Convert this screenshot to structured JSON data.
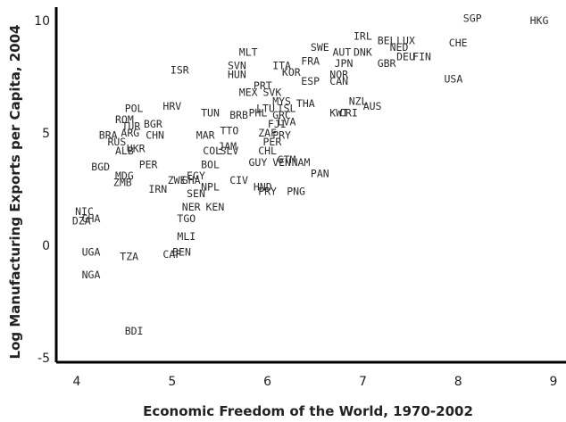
{
  "chart_data": {
    "type": "scatter",
    "xlabel": "Economic Freedom of the World, 1970-2002",
    "ylabel": "Log Manufacturing Exports per Capita, 2004",
    "xlim": [
      3.8,
      9.2
    ],
    "ylim": [
      -6.0,
      10.6
    ],
    "xticks": [
      4,
      5,
      6,
      7,
      8,
      9
    ],
    "yticks": [
      -5,
      0,
      5,
      10
    ],
    "grid": false,
    "points": [
      {
        "label": "SGP",
        "x": 8.15,
        "y": 10.1
      },
      {
        "label": "HKG",
        "x": 8.85,
        "y": 10.0
      },
      {
        "label": "IRL",
        "x": 7.0,
        "y": 9.3
      },
      {
        "label": "BEL",
        "x": 7.25,
        "y": 9.1
      },
      {
        "label": "LUX",
        "x": 7.45,
        "y": 9.1
      },
      {
        "label": "NED",
        "x": 7.38,
        "y": 8.8
      },
      {
        "label": "CHE",
        "x": 8.0,
        "y": 9.0
      },
      {
        "label": "DEU",
        "x": 7.45,
        "y": 8.4
      },
      {
        "label": "FIN",
        "x": 7.62,
        "y": 8.4
      },
      {
        "label": "SWE",
        "x": 6.55,
        "y": 8.8
      },
      {
        "label": "AUT",
        "x": 6.78,
        "y": 8.6
      },
      {
        "label": "DNK",
        "x": 7.0,
        "y": 8.6
      },
      {
        "label": "FRA",
        "x": 6.45,
        "y": 8.2
      },
      {
        "label": "JPN",
        "x": 6.8,
        "y": 8.1
      },
      {
        "label": "GBR",
        "x": 7.25,
        "y": 8.1
      },
      {
        "label": "MLT",
        "x": 5.8,
        "y": 8.6
      },
      {
        "label": "ITA",
        "x": 6.15,
        "y": 8.0
      },
      {
        "label": "KOR",
        "x": 6.25,
        "y": 7.7
      },
      {
        "label": "NOR",
        "x": 6.75,
        "y": 7.6
      },
      {
        "label": "ESP",
        "x": 6.45,
        "y": 7.3
      },
      {
        "label": "CAN",
        "x": 6.75,
        "y": 7.3
      },
      {
        "label": "ISR",
        "x": 5.08,
        "y": 7.8
      },
      {
        "label": "SVN",
        "x": 5.68,
        "y": 8.0
      },
      {
        "label": "HUN",
        "x": 5.68,
        "y": 7.6
      },
      {
        "label": "SVK",
        "x": 6.05,
        "y": 6.8
      },
      {
        "label": "PRT",
        "x": 5.95,
        "y": 7.1
      },
      {
        "label": "MEX",
        "x": 5.8,
        "y": 6.8
      },
      {
        "label": "USA",
        "x": 7.95,
        "y": 7.4
      },
      {
        "label": "MYS",
        "x": 6.15,
        "y": 6.4
      },
      {
        "label": "THA",
        "x": 6.4,
        "y": 6.3
      },
      {
        "label": "NZL",
        "x": 6.95,
        "y": 6.4
      },
      {
        "label": "AUS",
        "x": 7.1,
        "y": 6.2
      },
      {
        "label": "CRI",
        "x": 6.85,
        "y": 5.9
      },
      {
        "label": "KWT",
        "x": 6.75,
        "y": 5.9
      },
      {
        "label": "POL",
        "x": 4.6,
        "y": 6.1
      },
      {
        "label": "HRV",
        "x": 5.0,
        "y": 6.2
      },
      {
        "label": "ROM",
        "x": 4.5,
        "y": 5.6
      },
      {
        "label": "TUN",
        "x": 5.4,
        "y": 5.9
      },
      {
        "label": "BRB",
        "x": 5.7,
        "y": 5.8
      },
      {
        "label": "PHL",
        "x": 5.9,
        "y": 5.9
      },
      {
        "label": "LTU",
        "x": 5.98,
        "y": 6.1
      },
      {
        "label": "ISL",
        "x": 6.2,
        "y": 6.1
      },
      {
        "label": "GRC",
        "x": 6.15,
        "y": 5.8
      },
      {
        "label": "TUR",
        "x": 4.57,
        "y": 5.3
      },
      {
        "label": "BGR",
        "x": 4.8,
        "y": 5.4
      },
      {
        "label": "ARG",
        "x": 4.56,
        "y": 5.0
      },
      {
        "label": "CHN",
        "x": 4.82,
        "y": 4.9
      },
      {
        "label": "MAR",
        "x": 5.35,
        "y": 4.9
      },
      {
        "label": "TTO",
        "x": 5.6,
        "y": 5.1
      },
      {
        "label": "FJI",
        "x": 6.1,
        "y": 5.4
      },
      {
        "label": "LVA",
        "x": 6.2,
        "y": 5.5
      },
      {
        "label": "ZAF",
        "x": 6.0,
        "y": 5.0
      },
      {
        "label": "PRY",
        "x": 6.15,
        "y": 4.9
      },
      {
        "label": "PER",
        "x": 6.05,
        "y": 4.6
      },
      {
        "label": "BRA",
        "x": 4.33,
        "y": 4.9
      },
      {
        "label": "RUS",
        "x": 4.42,
        "y": 4.6
      },
      {
        "label": "ALB",
        "x": 4.5,
        "y": 4.2
      },
      {
        "label": "UKR",
        "x": 4.62,
        "y": 4.3
      },
      {
        "label": "JAM",
        "x": 5.58,
        "y": 4.4
      },
      {
        "label": "COL",
        "x": 5.42,
        "y": 4.2
      },
      {
        "label": "SLV",
        "x": 5.6,
        "y": 4.2
      },
      {
        "label": "CHL",
        "x": 6.0,
        "y": 4.2
      },
      {
        "label": "BOL",
        "x": 5.4,
        "y": 3.6
      },
      {
        "label": "GUY",
        "x": 5.9,
        "y": 3.7
      },
      {
        "label": "VEN",
        "x": 6.15,
        "y": 3.7
      },
      {
        "label": "GTM",
        "x": 6.2,
        "y": 3.8
      },
      {
        "label": "NAM",
        "x": 6.35,
        "y": 3.7
      },
      {
        "label": "BGD",
        "x": 4.25,
        "y": 3.5
      },
      {
        "label": "PER",
        "x": 4.75,
        "y": 3.6
      },
      {
        "label": "MDG",
        "x": 4.5,
        "y": 3.1
      },
      {
        "label": "ZMB",
        "x": 4.48,
        "y": 2.8
      },
      {
        "label": "EGY",
        "x": 5.25,
        "y": 3.1
      },
      {
        "label": "ZWE",
        "x": 5.05,
        "y": 2.9
      },
      {
        "label": "GHA",
        "x": 5.2,
        "y": 2.9
      },
      {
        "label": "IRN",
        "x": 4.85,
        "y": 2.5
      },
      {
        "label": "SEN",
        "x": 5.25,
        "y": 2.3
      },
      {
        "label": "NPL",
        "x": 5.4,
        "y": 2.6
      },
      {
        "label": "CIV",
        "x": 5.7,
        "y": 2.9
      },
      {
        "label": "HND",
        "x": 5.95,
        "y": 2.6
      },
      {
        "label": "PRY",
        "x": 6.0,
        "y": 2.4
      },
      {
        "label": "PNG",
        "x": 6.3,
        "y": 2.4
      },
      {
        "label": "PAN",
        "x": 6.55,
        "y": 3.2
      },
      {
        "label": "NER",
        "x": 5.2,
        "y": 1.7
      },
      {
        "label": "KEN",
        "x": 5.45,
        "y": 1.7
      },
      {
        "label": "TGO",
        "x": 5.15,
        "y": 1.2
      },
      {
        "label": "NIC",
        "x": 4.08,
        "y": 1.5
      },
      {
        "label": "GHA",
        "x": 4.15,
        "y": 1.2
      },
      {
        "label": "DZA",
        "x": 4.05,
        "y": 1.1
      },
      {
        "label": "MLI",
        "x": 5.15,
        "y": 0.4
      },
      {
        "label": "UGA",
        "x": 4.15,
        "y": -0.3
      },
      {
        "label": "TZA",
        "x": 4.55,
        "y": -0.5
      },
      {
        "label": "CAF",
        "x": 5.0,
        "y": -0.4
      },
      {
        "label": "BEN",
        "x": 5.1,
        "y": -0.3
      },
      {
        "label": "NGA",
        "x": 4.15,
        "y": -1.3
      },
      {
        "label": "BDI",
        "x": 4.6,
        "y": -3.8
      }
    ]
  }
}
